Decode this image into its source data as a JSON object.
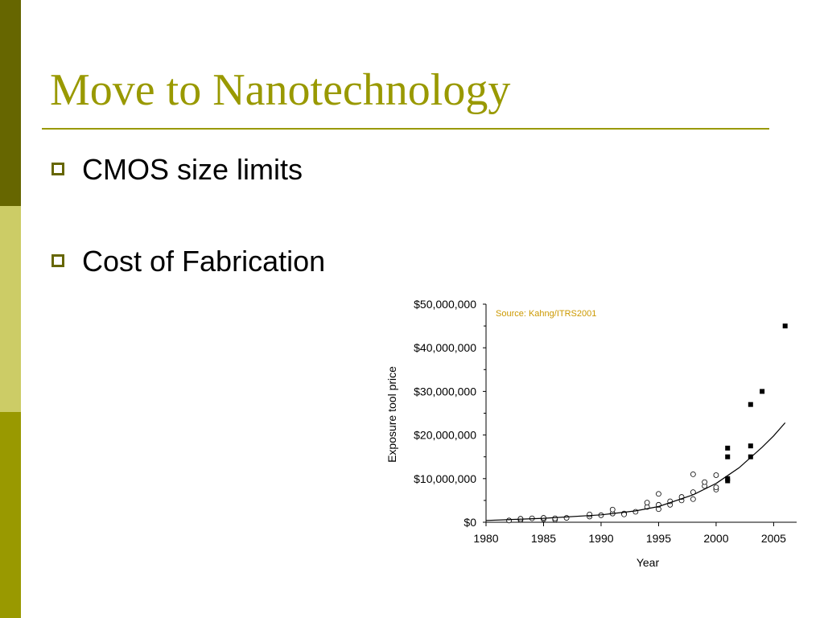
{
  "slide": {
    "title": "Move to Nanotechnology",
    "bullets": [
      "CMOS size limits",
      "Cost of Fabrication"
    ]
  },
  "colors": {
    "title": "#999900",
    "band_dark": "#666600",
    "band_light": "#cccc66",
    "band_mid": "#999900",
    "source_note": "#cc9900"
  },
  "chart_data": {
    "type": "scatter",
    "xlabel": "Year",
    "ylabel": "Exposure tool price",
    "annotation": "Source: Kahng/ITRS2001",
    "xlim": [
      1980,
      2007
    ],
    "ylim": [
      0,
      50000000
    ],
    "x_ticks": [
      1980,
      1985,
      1990,
      1995,
      2000,
      2005
    ],
    "y_ticks": [
      0,
      10000000,
      20000000,
      30000000,
      40000000,
      50000000
    ],
    "y_tick_labels": [
      "$0",
      "$10,000,000",
      "$20,000,000",
      "$30,000,000",
      "$40,000,000",
      "$50,000,000"
    ],
    "grid": false,
    "series": [
      {
        "marker": "open-circle",
        "points": [
          [
            1982,
            400000
          ],
          [
            1983,
            500000
          ],
          [
            1983,
            800000
          ],
          [
            1984,
            900000
          ],
          [
            1985,
            700000
          ],
          [
            1985,
            1000000
          ],
          [
            1986,
            600000
          ],
          [
            1986,
            900000
          ],
          [
            1987,
            1000000
          ],
          [
            1989,
            1300000
          ],
          [
            1989,
            1800000
          ],
          [
            1990,
            1600000
          ],
          [
            1991,
            2000000
          ],
          [
            1991,
            2900000
          ],
          [
            1992,
            2000000
          ],
          [
            1992,
            1800000
          ],
          [
            1993,
            2400000
          ],
          [
            1994,
            3500000
          ],
          [
            1994,
            4500000
          ],
          [
            1995,
            3000000
          ],
          [
            1995,
            4000000
          ],
          [
            1995,
            6500000
          ],
          [
            1996,
            4000000
          ],
          [
            1996,
            4800000
          ],
          [
            1997,
            5000000
          ],
          [
            1997,
            5800000
          ],
          [
            1998,
            5300000
          ],
          [
            1998,
            6900000
          ],
          [
            1998,
            11000000
          ],
          [
            1999,
            8300000
          ],
          [
            1999,
            9200000
          ],
          [
            2000,
            7500000
          ],
          [
            2000,
            8000000
          ],
          [
            2000,
            10800000
          ]
        ]
      },
      {
        "marker": "filled-square",
        "points": [
          [
            2001,
            9500000
          ],
          [
            2001,
            10000000
          ],
          [
            2001,
            15000000
          ],
          [
            2001,
            17000000
          ],
          [
            2003,
            15000000
          ],
          [
            2003,
            17500000
          ],
          [
            2003,
            27000000
          ],
          [
            2004,
            30000000
          ],
          [
            2006,
            45000000
          ]
        ]
      },
      {
        "marker": "line",
        "name": "trend",
        "points": [
          [
            1980,
            400000
          ],
          [
            1985,
            900000
          ],
          [
            1990,
            1700000
          ],
          [
            1993,
            2600000
          ],
          [
            1995,
            3600000
          ],
          [
            1998,
            6300000
          ],
          [
            2000,
            8900000
          ],
          [
            2002,
            12500000
          ],
          [
            2004,
            17200000
          ],
          [
            2005,
            19800000
          ],
          [
            2006,
            22800000
          ]
        ]
      }
    ]
  }
}
